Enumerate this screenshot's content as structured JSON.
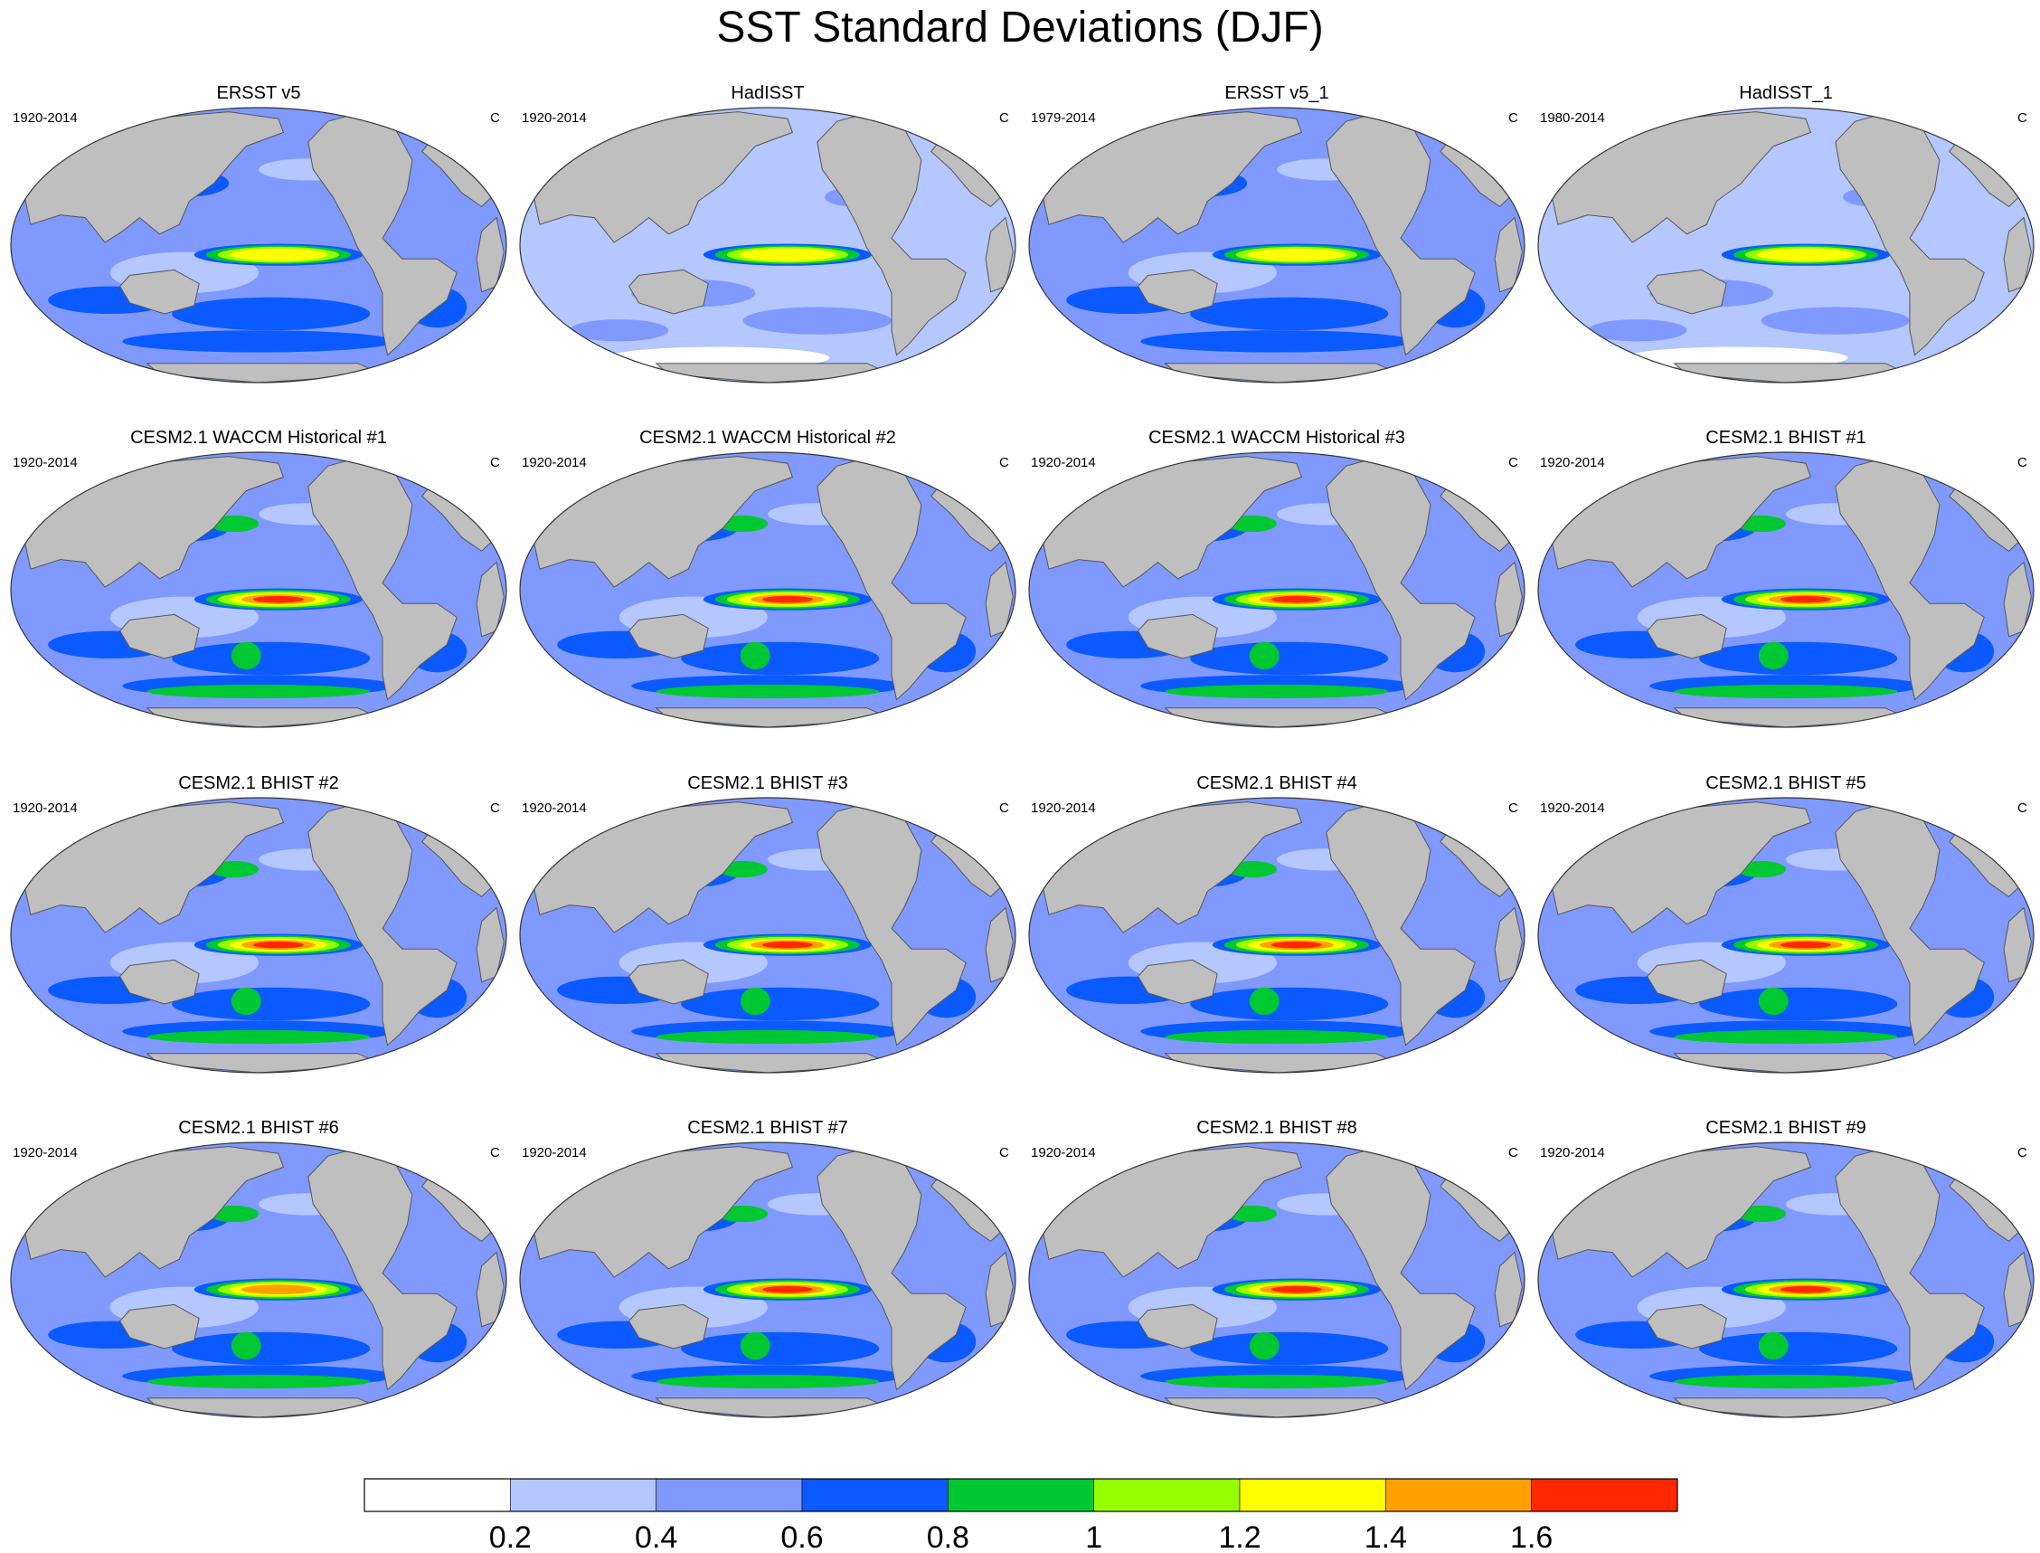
{
  "figure": {
    "title": "SST Standard Deviations (DJF)"
  },
  "chart_data": {
    "type": "heatmap",
    "title": "SST Standard Deviations (DJF)",
    "projection": "Robinson",
    "units": "C",
    "layout": {
      "rows": 4,
      "cols": 4
    },
    "panels": [
      {
        "title": "ERSST v5",
        "period": "1920-2014",
        "units": "C",
        "enso_peak": 1.2,
        "style": "obs"
      },
      {
        "title": "HadISST",
        "period": "1920-2014",
        "units": "C",
        "enso_peak": 1.2,
        "style": "obs_low"
      },
      {
        "title": "ERSST v5_1",
        "period": "1979-2014",
        "units": "C",
        "enso_peak": 1.2,
        "style": "obs"
      },
      {
        "title": "HadISST_1",
        "period": "1980-2014",
        "units": "C",
        "enso_peak": 1.2,
        "style": "obs_low"
      },
      {
        "title": "CESM2.1 WACCM Historical #1",
        "period": "1920-2014",
        "units": "C",
        "enso_peak": 1.6,
        "style": "model"
      },
      {
        "title": "CESM2.1 WACCM Historical #2",
        "period": "1920-2014",
        "units": "C",
        "enso_peak": 1.6,
        "style": "model"
      },
      {
        "title": "CESM2.1 WACCM Historical #3",
        "period": "1920-2014",
        "units": "C",
        "enso_peak": 1.6,
        "style": "model"
      },
      {
        "title": "CESM2.1 BHIST #1",
        "period": "1920-2014",
        "units": "C",
        "enso_peak": 1.6,
        "style": "model"
      },
      {
        "title": "CESM2.1 BHIST #2",
        "period": "1920-2014",
        "units": "C",
        "enso_peak": 1.7,
        "style": "model"
      },
      {
        "title": "CESM2.1 BHIST #3",
        "period": "1920-2014",
        "units": "C",
        "enso_peak": 1.7,
        "style": "model"
      },
      {
        "title": "CESM2.1 BHIST #4",
        "period": "1920-2014",
        "units": "C",
        "enso_peak": 1.7,
        "style": "model"
      },
      {
        "title": "CESM2.1 BHIST #5",
        "period": "1920-2014",
        "units": "C",
        "enso_peak": 1.7,
        "style": "model"
      },
      {
        "title": "CESM2.1 BHIST #6",
        "period": "1920-2014",
        "units": "C",
        "enso_peak": 1.4,
        "style": "model"
      },
      {
        "title": "CESM2.1 BHIST #7",
        "period": "1920-2014",
        "units": "C",
        "enso_peak": 1.6,
        "style": "model"
      },
      {
        "title": "CESM2.1 BHIST #8",
        "period": "1920-2014",
        "units": "C",
        "enso_peak": 1.6,
        "style": "model"
      },
      {
        "title": "CESM2.1 BHIST #9",
        "period": "1920-2014",
        "units": "C",
        "enso_peak": 1.6,
        "style": "model"
      }
    ],
    "colorbar": {
      "levels": [
        0.2,
        0.4,
        0.6,
        0.8,
        1,
        1.2,
        1.4,
        1.6
      ],
      "tick_labels": [
        "0.2",
        "0.4",
        "0.6",
        "0.8",
        "1",
        "1.2",
        "1.4",
        "1.6"
      ],
      "colors": [
        "#ffffff",
        "#b4c7ff",
        "#8099ff",
        "#0a5aff",
        "#00c832",
        "#96ff00",
        "#ffff00",
        "#ffa000",
        "#ff2800"
      ]
    },
    "land_color": "#bfbfbf"
  }
}
